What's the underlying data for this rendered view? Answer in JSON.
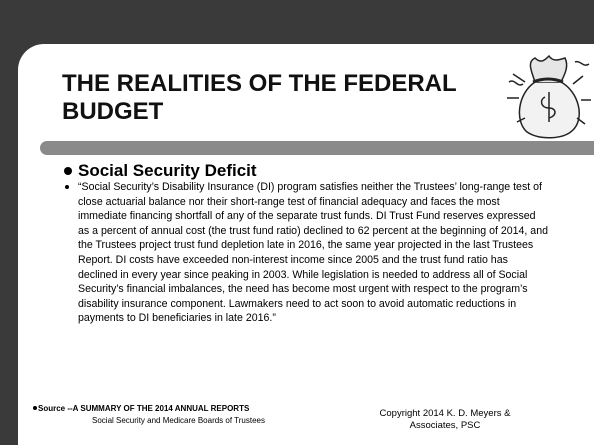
{
  "header": {
    "title": "THE REALITIES OF THE FEDERAL BUDGET"
  },
  "content": {
    "heading": "Social Security Deficit",
    "paragraph": "“Social Security’s Disability Insurance (DI) program satisfies neither the Trustees’ long-range test of close actuarial balance nor their short-range test of financial adequacy and faces the most immediate financing shortfall of any of the separate trust funds. DI Trust Fund reserves expressed as a percent of annual cost (the trust fund ratio) declined to 62 percent at the beginning of 2014, and the Trustees project trust fund depletion late in 2016, the same year projected in the last Trustees Report. DI costs have exceeded non-interest income since 2005 and the trust fund ratio has declined in every year since peaking in 2003. While legislation is needed to address all of Social Security’s financial imbalances, the need has become most urgent with respect to the program’s disability insurance component. Lawmakers need to act soon to avoid automatic reductions in payments to DI beneficiaries in late 2016.”"
  },
  "footer": {
    "source": "Source --A SUMMARY OF THE 2014 ANNUAL REPORTS",
    "source_sub": "Social Security and Medicare Boards of Trustees",
    "copyright": "Copyright 2014 K. D. Meyers & Associates, PSC"
  }
}
